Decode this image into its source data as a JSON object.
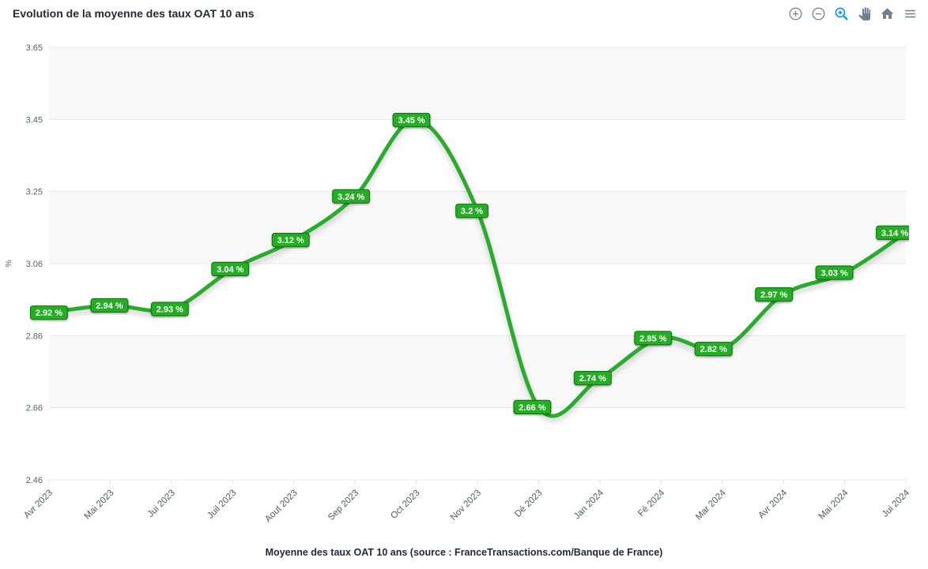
{
  "header": {
    "title": "Evolution de la moyenne des taux OAT 10 ans"
  },
  "toolbar": {
    "icons": [
      {
        "name": "zoom-in-icon"
      },
      {
        "name": "zoom-out-icon"
      },
      {
        "name": "selection-zoom-icon",
        "active": true
      },
      {
        "name": "pan-icon"
      },
      {
        "name": "home-icon"
      },
      {
        "name": "menu-icon"
      }
    ],
    "icon_color": "#6e8192",
    "active_icon_color": "#008ffb"
  },
  "chart_data": {
    "type": "line",
    "title": "Evolution de la moyenne des taux OAT 10 ans",
    "categories": [
      "Avr 2023",
      "Mai 2023",
      "Jui 2023",
      "Juil 2023",
      "Aout 2023",
      "Sep 2023",
      "Oct 2023",
      "Nov 2023",
      "Dé 2023",
      "Jan 2024",
      "Fé 2024",
      "Mar 2024",
      "Avr 2024",
      "Mai 2024",
      "Jui 2024"
    ],
    "values": [
      2.92,
      2.94,
      2.93,
      3.04,
      3.12,
      3.24,
      3.45,
      3.2,
      2.66,
      2.74,
      2.85,
      2.82,
      2.97,
      3.03,
      3.14
    ],
    "point_labels": [
      "2.92 %",
      "2.94 %",
      "2.93 %",
      "3.04 %",
      "3.12 %",
      "3.24 %",
      "3.45 %",
      "3.2 %",
      "2.66 %",
      "2.74 %",
      "2.85 %",
      "2.82 %",
      "2.97 %",
      "3.03 %",
      "3.14 %"
    ],
    "xlabel": "",
    "ylabel": "%",
    "y_ticks": [
      "3.65",
      "3.45",
      "3.25",
      "3.06",
      "2.86",
      "2.66",
      "2.46"
    ],
    "ylim": [
      2.46,
      3.65
    ],
    "x_label_rotation": -45,
    "grid": {
      "row_colors": [
        "#f8f8f8",
        "#ffffff"
      ],
      "line_color": "#e8e8e8",
      "tick_color": "#dfe3e6"
    },
    "line_color": "#2cab2e",
    "label_fill": "#27ad27",
    "label_border": "#157a15",
    "label_text_color": "#ffffff",
    "axis_text_color": "#58626b",
    "legend_position": "none"
  },
  "caption": {
    "text": "Moyenne des taux OAT 10 ans (source : FranceTransactions.com/Banque de France)"
  }
}
